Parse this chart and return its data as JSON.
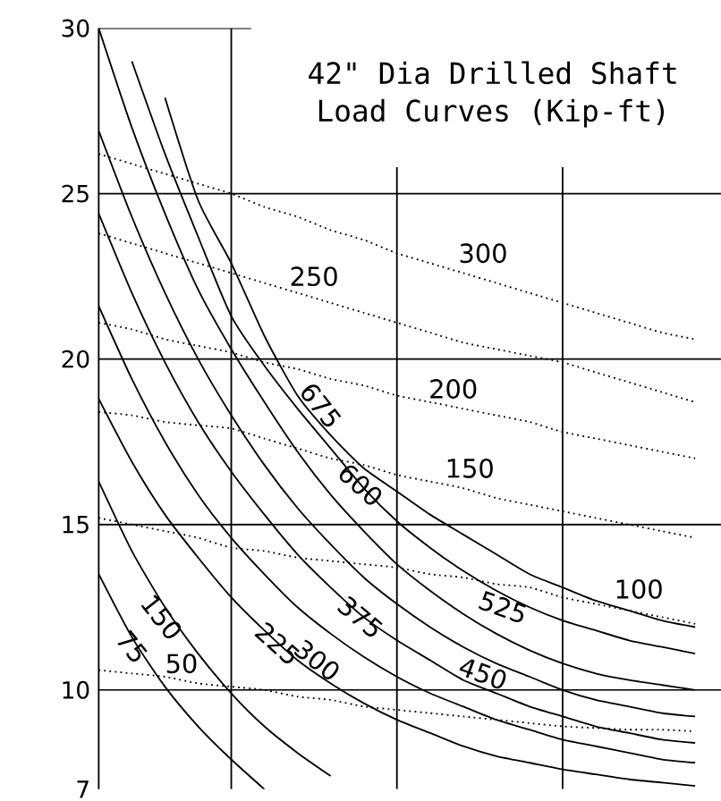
{
  "chart_data": {
    "type": "line",
    "title": "42\" Dia Drilled Shaft",
    "subtitle": "Load Curves (Kip-ft)",
    "categories": [
      null,
      null,
      null,
      null,
      null,
      null,
      null,
      null,
      null,
      null,
      null,
      null,
      null,
      null,
      null,
      null,
      null,
      null,
      null
    ],
    "color": "#000000",
    "ylim": [
      7,
      30
    ],
    "yticks": [
      7,
      10,
      15,
      20,
      25,
      30
    ],
    "grid": true,
    "tick_labels": "y",
    "series": [
      {
        "name": "75",
        "line_style": "solid",
        "values": [
          13.5,
          11.6,
          10.1,
          8.9,
          7.9,
          7.0,
          null,
          null,
          null,
          null,
          null,
          null,
          null,
          null,
          null,
          null,
          null,
          null,
          null
        ]
      },
      {
        "name": "150",
        "line_style": "solid",
        "values": [
          16.3,
          14.2,
          12.5,
          11.1,
          9.9,
          8.9,
          8.1,
          7.4,
          null,
          null,
          null,
          null,
          null,
          null,
          null,
          null,
          null,
          null,
          null
        ]
      },
      {
        "name": "225",
        "line_style": "solid",
        "values": [
          18.8,
          16.9,
          15.3,
          14.0,
          12.8,
          11.8,
          10.9,
          10.2,
          9.6,
          9.1,
          8.7,
          8.3,
          8.0,
          7.8,
          7.6,
          7.45,
          7.3,
          7.2,
          7.1
        ]
      },
      {
        "name": "300",
        "line_style": "solid",
        "values": [
          21.6,
          19.4,
          17.5,
          15.9,
          14.6,
          13.5,
          12.5,
          11.7,
          11.0,
          10.4,
          9.9,
          9.5,
          9.1,
          8.8,
          8.5,
          8.3,
          8.1,
          7.9,
          7.8
        ]
      },
      {
        "name": "375",
        "line_style": "solid",
        "values": [
          24.4,
          22.0,
          19.9,
          18.1,
          16.6,
          15.3,
          14.1,
          13.1,
          12.2,
          11.5,
          10.9,
          10.3,
          9.9,
          9.5,
          9.2,
          8.9,
          8.7,
          8.5,
          8.4
        ]
      },
      {
        "name": "450",
        "line_style": "solid",
        "values": [
          26.9,
          24.3,
          22.0,
          20.0,
          18.3,
          16.8,
          15.5,
          14.4,
          13.4,
          12.6,
          11.9,
          11.3,
          10.8,
          10.4,
          10.0,
          9.7,
          9.5,
          9.3,
          9.2
        ]
      },
      {
        "name": "525",
        "line_style": "solid",
        "values": [
          30.0,
          27.0,
          24.4,
          22.1,
          20.3,
          18.7,
          17.2,
          15.9,
          14.8,
          13.8,
          13.0,
          12.3,
          11.7,
          11.2,
          10.8,
          10.5,
          10.3,
          10.15,
          10.0
        ]
      },
      {
        "name": "600",
        "line_style": "solid",
        "values": [
          null,
          29.0,
          26.2,
          23.7,
          21.3,
          19.8,
          18.5,
          17.3,
          16.1,
          15.1,
          14.3,
          13.6,
          13.0,
          12.5,
          12.1,
          11.8,
          11.5,
          11.3,
          11.1
        ]
      },
      {
        "name": "675",
        "line_style": "solid",
        "values": [
          null,
          null,
          27.9,
          24.8,
          22.9,
          20.7,
          18.9,
          17.7,
          16.7,
          16.0,
          15.3,
          14.7,
          14.1,
          13.5,
          13.1,
          12.7,
          12.4,
          12.1,
          11.9
        ]
      },
      {
        "name": "50",
        "line_style": "dotted",
        "values": [
          10.6,
          10.5,
          10.4,
          10.2,
          10.1,
          10.0,
          9.8,
          9.7,
          9.5,
          9.4,
          9.3,
          9.2,
          9.1,
          9.0,
          8.9,
          8.85,
          8.8,
          8.8,
          8.75
        ]
      },
      {
        "name": "100",
        "line_style": "dotted",
        "values": [
          15.2,
          15.0,
          14.8,
          14.6,
          14.3,
          14.2,
          14.0,
          13.9,
          13.8,
          13.7,
          13.5,
          13.4,
          13.2,
          13.1,
          12.8,
          12.6,
          12.4,
          12.2,
          12.0
        ]
      },
      {
        "name": "150",
        "line_style": "dotted",
        "values": [
          18.4,
          18.3,
          18.1,
          18.0,
          17.9,
          17.6,
          17.3,
          17.0,
          16.8,
          16.5,
          16.3,
          16.1,
          15.8,
          15.6,
          15.4,
          15.2,
          15.0,
          14.8,
          14.6
        ]
      },
      {
        "name": "200",
        "line_style": "dotted",
        "values": [
          21.1,
          20.9,
          20.6,
          20.4,
          20.2,
          19.9,
          19.7,
          19.4,
          19.2,
          18.9,
          18.7,
          18.5,
          18.3,
          18.1,
          17.8,
          17.6,
          17.4,
          17.2,
          17.0
        ]
      },
      {
        "name": "250",
        "line_style": "dotted",
        "values": [
          23.8,
          23.5,
          23.2,
          22.9,
          22.6,
          22.3,
          22.0,
          21.7,
          21.4,
          21.1,
          20.8,
          20.5,
          20.3,
          20.1,
          19.9,
          19.6,
          19.3,
          19.0,
          18.7
        ]
      },
      {
        "name": "300",
        "line_style": "dotted",
        "values": [
          26.2,
          25.9,
          25.6,
          25.3,
          25.0,
          24.6,
          24.3,
          23.9,
          23.6,
          23.2,
          22.9,
          22.6,
          22.3,
          22.0,
          21.7,
          21.4,
          21.1,
          20.8,
          20.6
        ]
      }
    ]
  }
}
